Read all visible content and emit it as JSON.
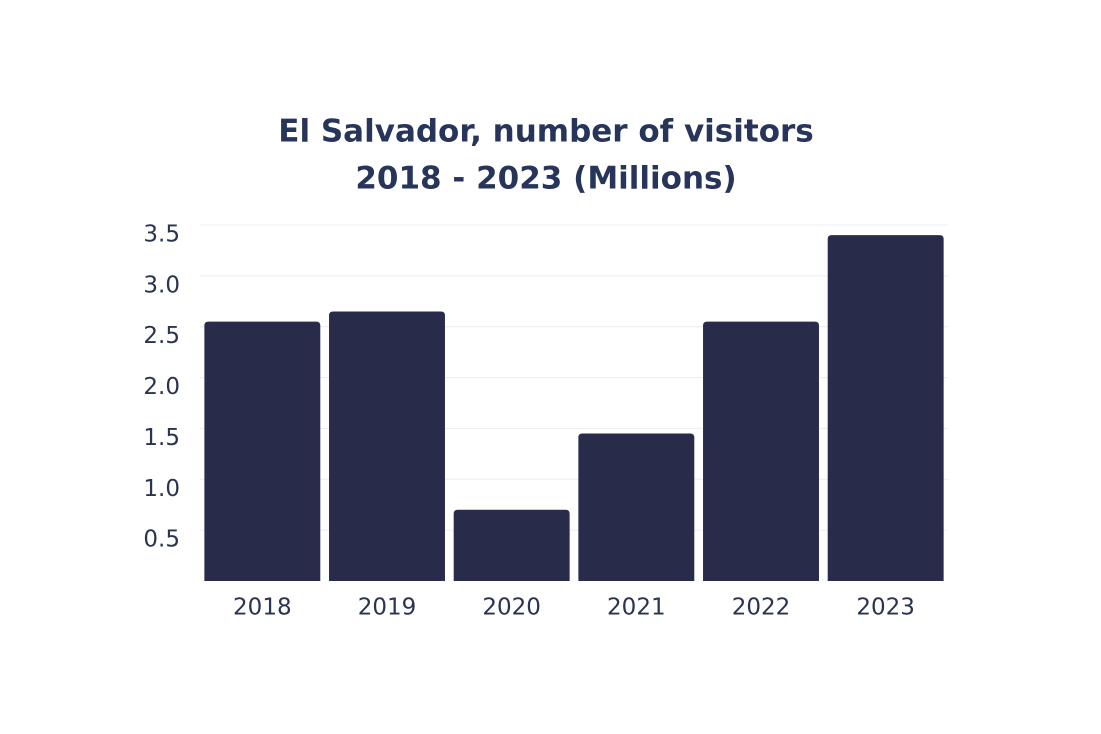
{
  "chart_data": {
    "type": "bar",
    "title": [
      "El Salvador, number of visitors",
      "2018 - 2023 (Millions)"
    ],
    "categories": [
      "2018",
      "2019",
      "2020",
      "2021",
      "2022",
      "2023"
    ],
    "values": [
      2.55,
      2.65,
      0.7,
      1.45,
      2.55,
      3.4
    ],
    "color": "#282c4a",
    "ylim": [
      0,
      3.5
    ],
    "yticks": [
      0.5,
      {
        "value": 1,
        "label": "1.0"
      },
      1.5,
      {
        "value": 2,
        "label": "2.0"
      },
      2.5,
      {
        "value": 3,
        "label": "3.0"
      },
      3.5
    ],
    "grid": true
  }
}
